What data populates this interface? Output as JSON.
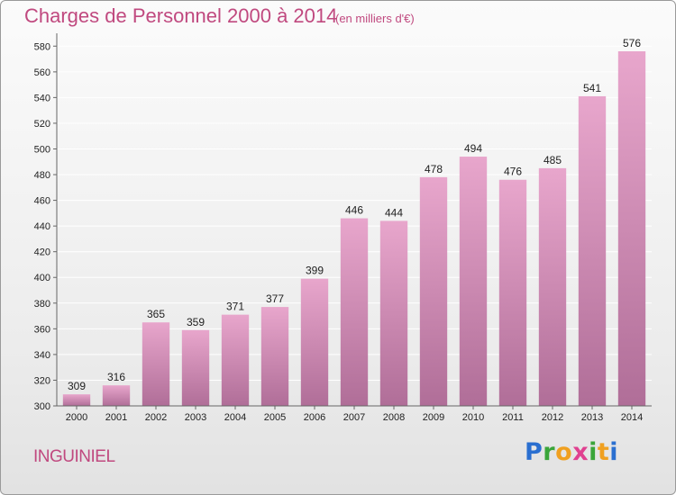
{
  "title": "Charges de Personnel 2000 à 2014",
  "subtitle": "(en milliers d'€)",
  "commune": "INGUINIEL",
  "logo": {
    "letters": [
      "P",
      "r",
      "o",
      "x",
      "i",
      "t",
      "i"
    ],
    "colors": [
      "#2a6fd0",
      "#3aa53a",
      "#f0a020",
      "#e04090",
      "#3aa53a",
      "#f0a020",
      "#2a6fd0"
    ]
  },
  "colors": {
    "bar_top": "#e8a6cc",
    "bar_bottom": "#b06e98",
    "axis": "#666666",
    "grid": "#ffffff"
  },
  "chart_data": {
    "type": "bar",
    "categories": [
      "2000",
      "2001",
      "2002",
      "2003",
      "2004",
      "2005",
      "2006",
      "2007",
      "2008",
      "2009",
      "2010",
      "2011",
      "2012",
      "2013",
      "2014"
    ],
    "values": [
      309,
      316,
      365,
      359,
      371,
      377,
      399,
      446,
      444,
      478,
      494,
      476,
      485,
      541,
      576
    ],
    "ylim": [
      300,
      590
    ],
    "yticks": [
      300,
      320,
      340,
      360,
      380,
      400,
      420,
      440,
      460,
      480,
      500,
      520,
      540,
      560,
      580
    ],
    "grid": true,
    "data_labels": true
  }
}
